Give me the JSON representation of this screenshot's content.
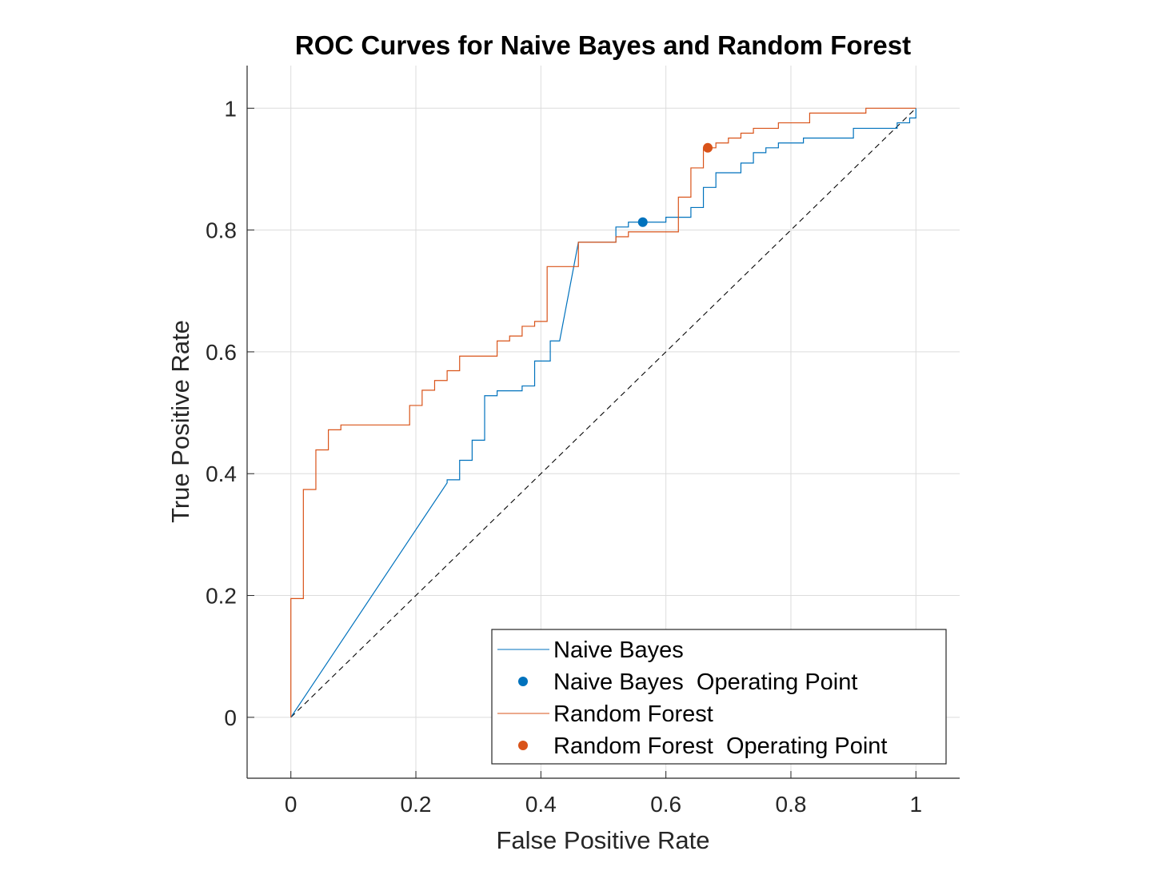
{
  "chart_data": {
    "type": "line",
    "title": "ROC Curves for Naive Bayes and Random Forest",
    "xlabel": "False Positive Rate",
    "ylabel": "True Positive Rate",
    "xlim": [
      -0.07,
      1.07
    ],
    "ylim": [
      -0.1,
      1.07
    ],
    "xticks": [
      0,
      0.2,
      0.4,
      0.6,
      0.8,
      1
    ],
    "yticks": [
      0,
      0.2,
      0.4,
      0.6,
      0.8,
      1
    ],
    "xtick_labels": [
      "0",
      "0.2",
      "0.4",
      "0.6",
      "0.8",
      "1"
    ],
    "ytick_labels": [
      "0",
      "0.2",
      "0.4",
      "0.6",
      "0.8",
      "1"
    ],
    "grid": true,
    "legend_position": "bottom-right",
    "colors": {
      "naive_bayes": "#0072BD",
      "random_forest": "#D95319",
      "diagonal": "#000000"
    },
    "series": [
      {
        "name": "Naive Bayes",
        "kind": "line",
        "x": [
          0,
          0.25,
          0.25,
          0.27,
          0.27,
          0.29,
          0.29,
          0.31,
          0.31,
          0.33,
          0.33,
          0.35,
          0.35,
          0.37,
          0.37,
          0.39,
          0.39,
          0.415,
          0.415,
          0.43,
          0.43,
          0.46,
          0.46,
          0.52,
          0.52,
          0.54,
          0.54,
          0.555,
          0.555,
          0.6,
          0.6,
          0.64,
          0.64,
          0.66,
          0.66,
          0.68,
          0.68,
          0.72,
          0.72,
          0.74,
          0.74,
          0.76,
          0.76,
          0.78,
          0.78,
          0.8,
          0.8,
          0.82,
          0.82,
          0.9,
          0.9,
          0.95,
          0.95,
          0.97,
          0.97,
          0.99,
          0.99,
          1,
          1
        ],
        "y": [
          0,
          0.385,
          0.39,
          0.39,
          0.422,
          0.422,
          0.455,
          0.455,
          0.528,
          0.528,
          0.536,
          0.536,
          0.536,
          0.536,
          0.544,
          0.544,
          0.585,
          0.585,
          0.618,
          0.618,
          0.618,
          0.78,
          0.78,
          0.78,
          0.805,
          0.805,
          0.813,
          0.813,
          0.813,
          0.813,
          0.821,
          0.821,
          0.837,
          0.837,
          0.87,
          0.87,
          0.894,
          0.894,
          0.91,
          0.91,
          0.927,
          0.927,
          0.935,
          0.935,
          0.943,
          0.943,
          0.943,
          0.943,
          0.951,
          0.951,
          0.967,
          0.967,
          0.967,
          0.967,
          0.976,
          0.976,
          0.984,
          0.984,
          1
        ]
      },
      {
        "name": "Naive Bayes  Operating Point",
        "kind": "point",
        "x": [
          0.563
        ],
        "y": [
          0.813
        ]
      },
      {
        "name": "Random Forest",
        "kind": "line",
        "x": [
          0,
          0,
          0.02,
          0.02,
          0.04,
          0.04,
          0.06,
          0.06,
          0.08,
          0.08,
          0.19,
          0.19,
          0.21,
          0.21,
          0.23,
          0.23,
          0.25,
          0.25,
          0.27,
          0.27,
          0.29,
          0.29,
          0.33,
          0.33,
          0.35,
          0.35,
          0.37,
          0.37,
          0.39,
          0.39,
          0.41,
          0.41,
          0.44,
          0.44,
          0.46,
          0.46,
          0.52,
          0.52,
          0.54,
          0.54,
          0.56,
          0.56,
          0.62,
          0.62,
          0.64,
          0.64,
          0.66,
          0.66,
          0.68,
          0.68,
          0.7,
          0.7,
          0.72,
          0.72,
          0.74,
          0.74,
          0.78,
          0.78,
          0.83,
          0.83,
          0.92,
          0.92,
          1
        ],
        "y": [
          0,
          0.195,
          0.195,
          0.374,
          0.374,
          0.439,
          0.439,
          0.472,
          0.472,
          0.48,
          0.48,
          0.512,
          0.512,
          0.537,
          0.537,
          0.553,
          0.553,
          0.569,
          0.569,
          0.593,
          0.593,
          0.593,
          0.593,
          0.618,
          0.618,
          0.626,
          0.626,
          0.642,
          0.642,
          0.65,
          0.65,
          0.74,
          0.74,
          0.74,
          0.74,
          0.78,
          0.78,
          0.789,
          0.789,
          0.797,
          0.797,
          0.797,
          0.797,
          0.854,
          0.854,
          0.902,
          0.902,
          0.935,
          0.935,
          0.943,
          0.943,
          0.951,
          0.951,
          0.959,
          0.959,
          0.967,
          0.967,
          0.976,
          0.976,
          0.992,
          0.992,
          1,
          1
        ]
      },
      {
        "name": "Random Forest  Operating Point",
        "kind": "point",
        "x": [
          0.667
        ],
        "y": [
          0.935
        ]
      }
    ],
    "diagonal": {
      "x": [
        0,
        1
      ],
      "y": [
        0,
        1
      ]
    }
  }
}
